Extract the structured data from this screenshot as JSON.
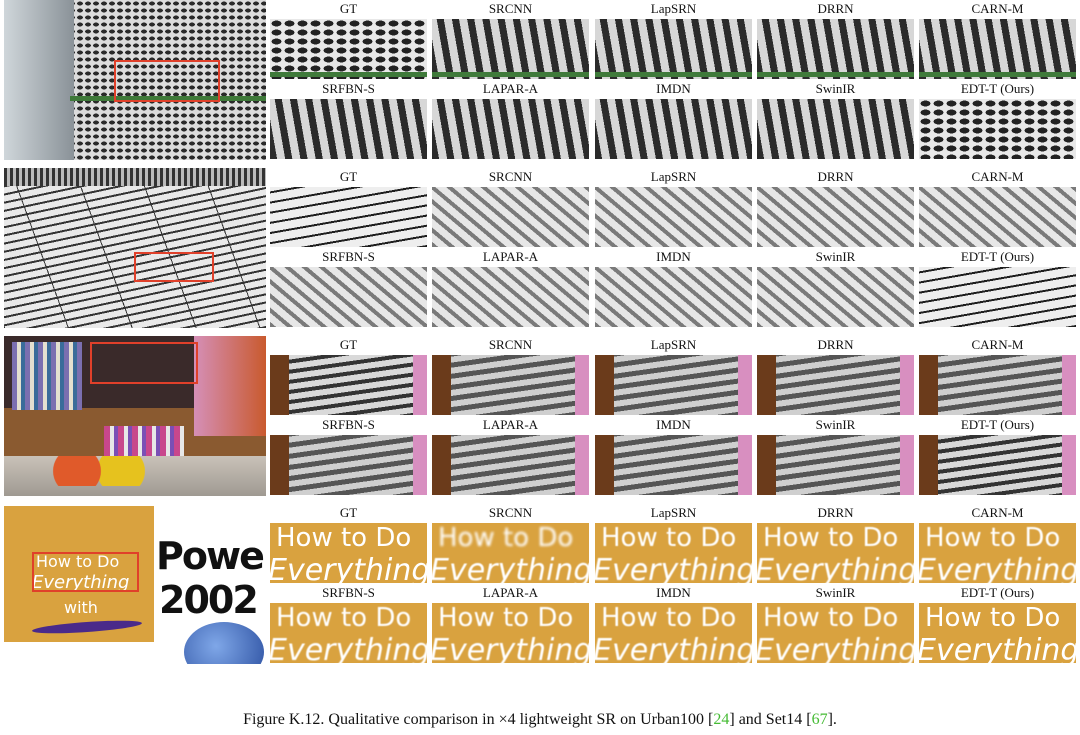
{
  "figure": {
    "method_labels_top": [
      "GT",
      "SRCNN",
      "LapSRN",
      "DRRN",
      "CARN-M"
    ],
    "method_labels_bottom": [
      "SRFBN-S",
      "LAPAR-A",
      "IMDN",
      "SwinIR",
      "EDT-T (Ours)"
    ],
    "rows": [
      {
        "name": "urban-holes",
        "top": [
          "GT",
          "SRCNN",
          "LapSRN",
          "DRRN",
          "CARN-M"
        ],
        "bottom": [
          "SRFBN-S",
          "LAPAR-A",
          "IMDN",
          "SwinIR",
          "EDT-T (Ours)"
        ]
      },
      {
        "name": "urban-stripes",
        "top": [
          "GT",
          "SRCNN",
          "LapSRN",
          "DRRN",
          "CARN-M"
        ],
        "bottom": [
          "SRFBN-S",
          "LAPAR-A",
          "IMDN",
          "SwinIR",
          "EDT-T (Ours)"
        ]
      },
      {
        "name": "bookshelf",
        "top": [
          "GT",
          "SRCNN",
          "LapSRN",
          "DRRN",
          "CARN-M"
        ],
        "bottom": [
          "SRFBN-S",
          "LAPAR-A",
          "IMDN",
          "SwinIR",
          "EDT-T (Ours)"
        ]
      },
      {
        "name": "book-cover",
        "top": [
          "GT",
          "SRCNN",
          "LapSRN",
          "DRRN",
          "CARN-M"
        ],
        "bottom": [
          "SRFBN-S",
          "LAPAR-A",
          "IMDN",
          "SwinIR",
          "EDT-T (Ours)"
        ]
      }
    ],
    "cover": {
      "line1": "How to Do",
      "line2": "Everything",
      "line3": "with",
      "power": "PowerI",
      "year": "2002",
      "crop_line1": "How to Do",
      "crop_line2": "Everything"
    }
  },
  "caption": {
    "prefix": "Figure K.12. Qualitative comparison in ×4 lightweight SR on Urban100 [",
    "cite1": "24",
    "middle": "] and Set14 [",
    "cite2": "67",
    "suffix": "]."
  },
  "colors": {
    "highlight_box": "#e0402a",
    "citation": "#44bb33",
    "cover_gold": "#d9a23f"
  }
}
